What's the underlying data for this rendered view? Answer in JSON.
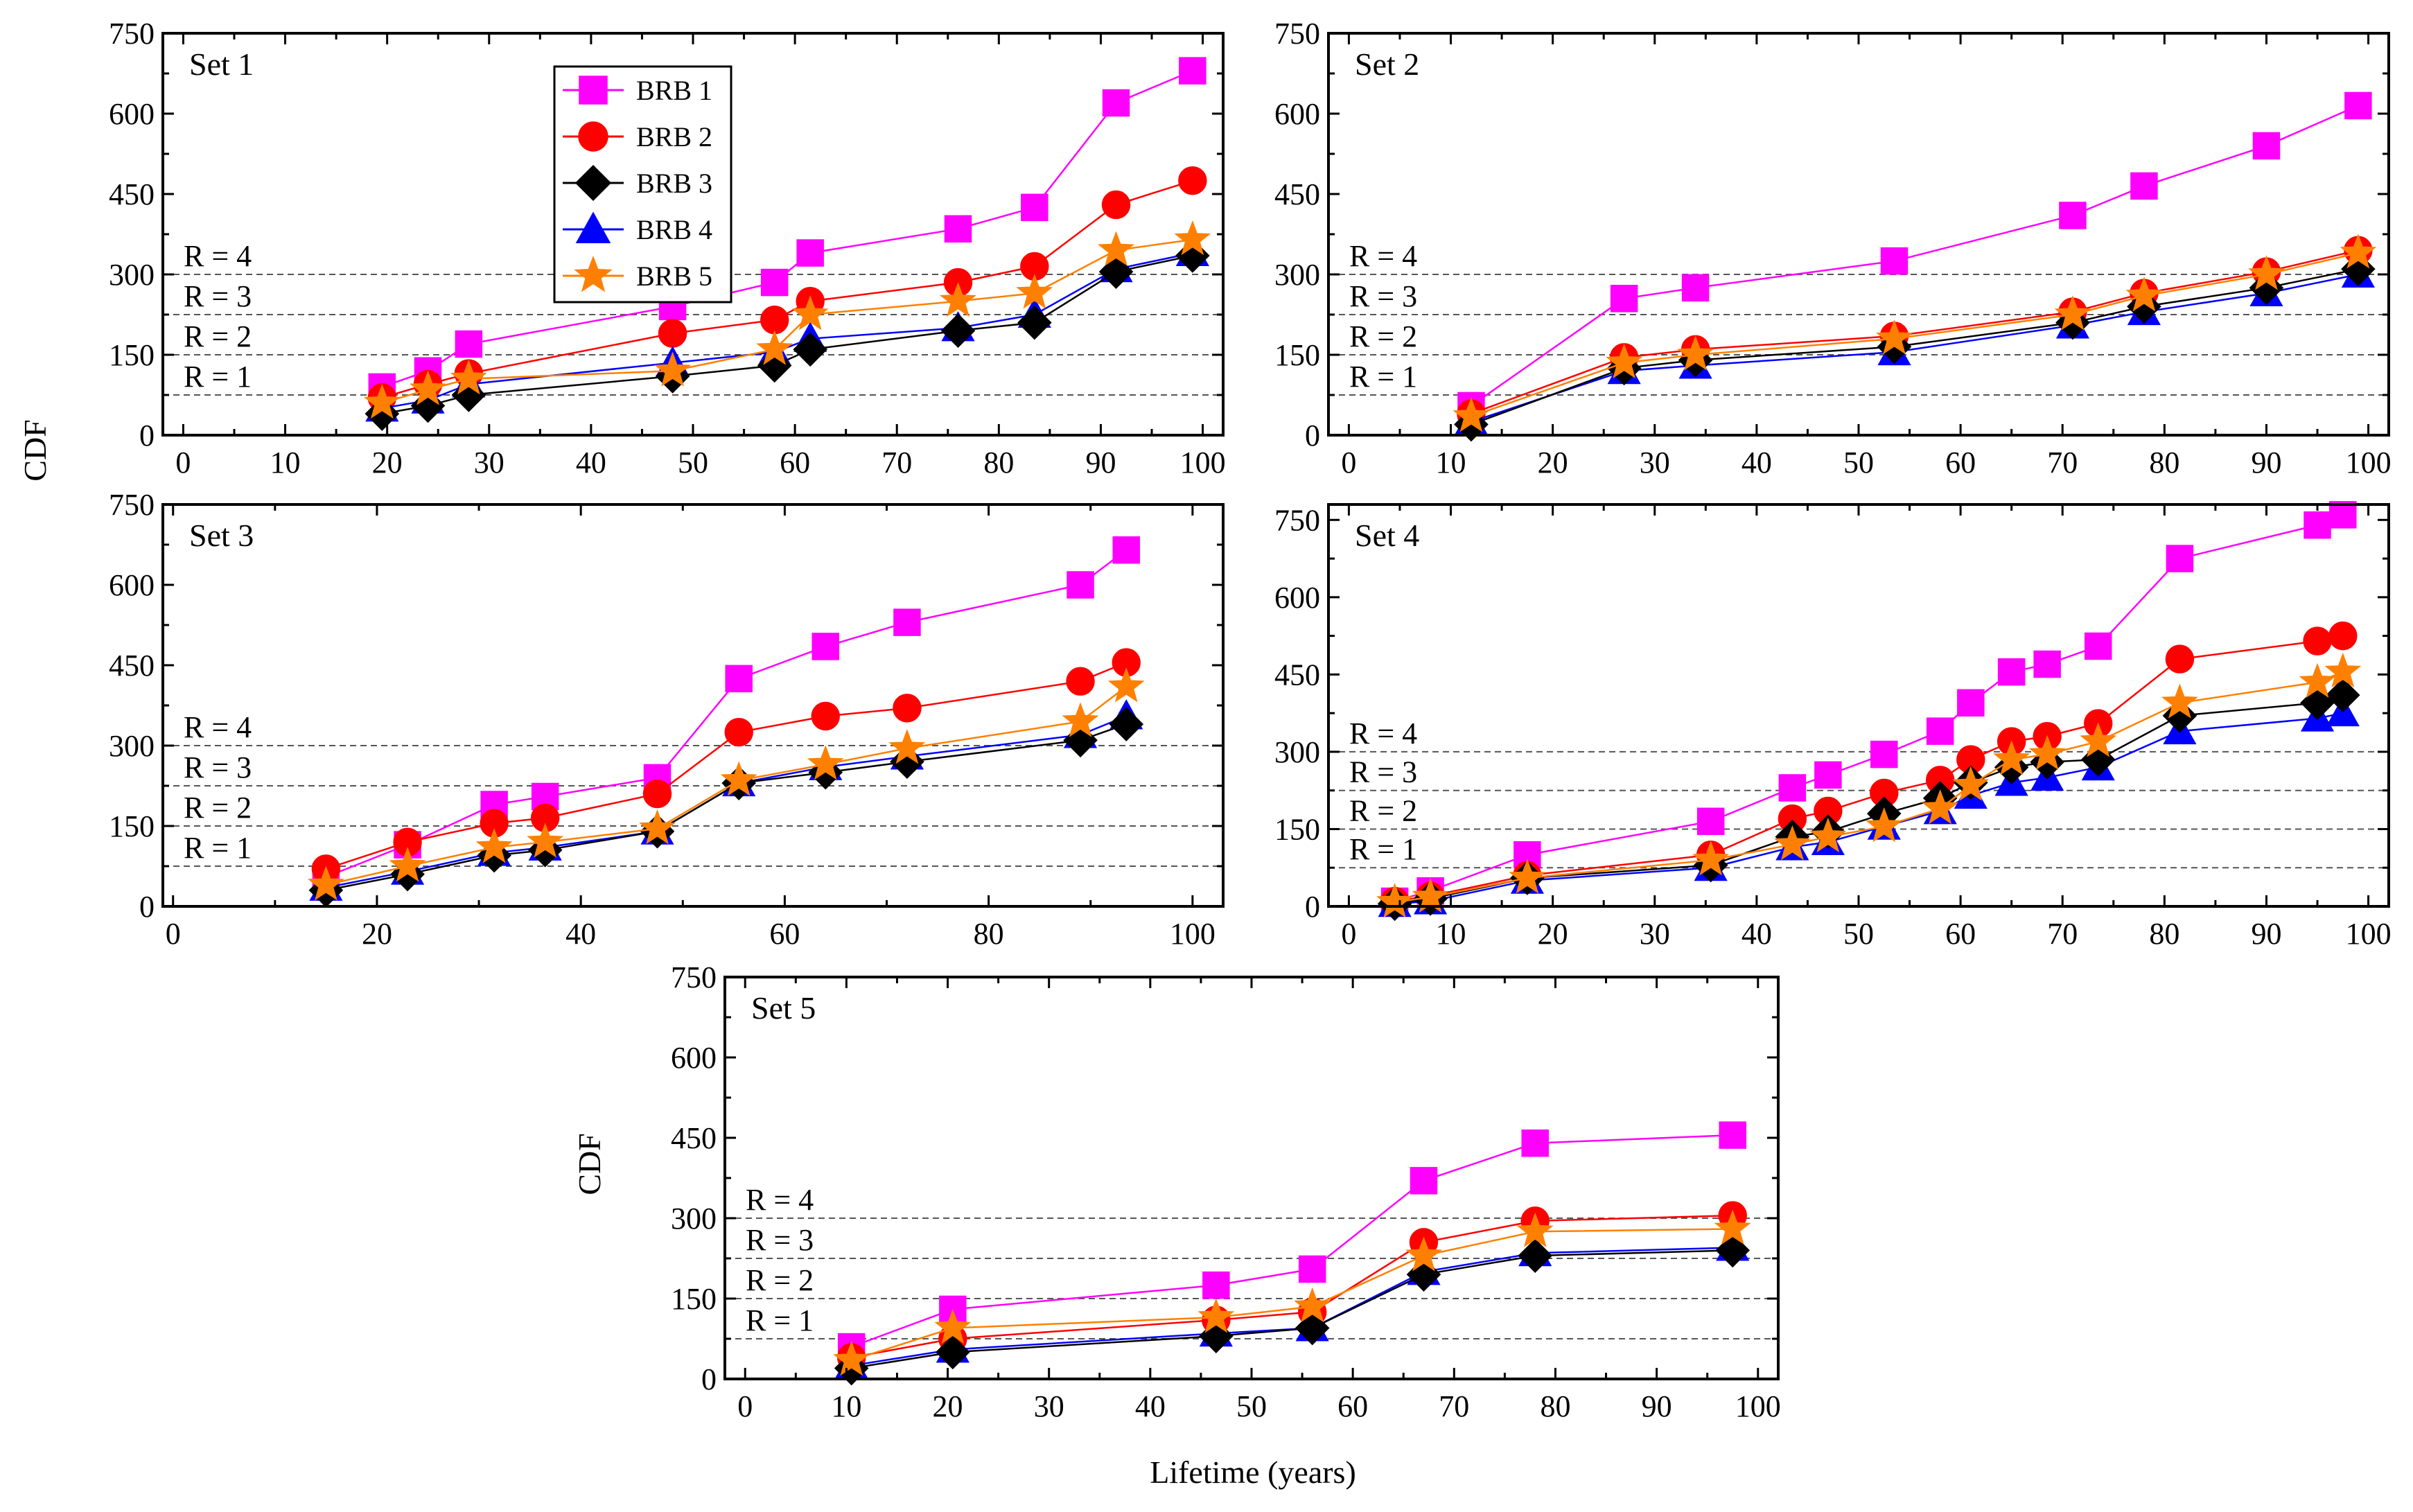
{
  "figure": {
    "ylabel": "CDF",
    "xlabel": "Lifetime (years)"
  },
  "legend": [
    {
      "label": "BRB 1",
      "color": "#ff00ff",
      "marker": "square"
    },
    {
      "label": "BRB 2",
      "color": "#ff0000",
      "marker": "circle"
    },
    {
      "label": "BRB 3",
      "color": "#000000",
      "marker": "diamond"
    },
    {
      "label": "BRB 4",
      "color": "#0000ff",
      "marker": "triangle"
    },
    {
      "label": "BRB 5",
      "color": "#ff8000",
      "marker": "star"
    }
  ],
  "chart_data": [
    {
      "type": "line",
      "title": "Set 1",
      "xlim": [
        -2,
        102
      ],
      "xticks": [
        0,
        10,
        20,
        30,
        40,
        50,
        60,
        70,
        80,
        90,
        100
      ],
      "ylim": [
        0,
        750
      ],
      "yticks": [
        0,
        150,
        300,
        450,
        600,
        750
      ],
      "thresholds": [
        {
          "label": "R = 1",
          "y": 75
        },
        {
          "label": "R = 2",
          "y": 150
        },
        {
          "label": "R = 3",
          "y": 225
        },
        {
          "label": "R = 4",
          "y": 300
        }
      ],
      "x": [
        19.5,
        24,
        28,
        48,
        58,
        61.5,
        76,
        83.5,
        91.5,
        99
      ],
      "series": [
        {
          "name": "BRB 1",
          "values": [
            90,
            120,
            170,
            240,
            285,
            340,
            385,
            425,
            620,
            680
          ]
        },
        {
          "name": "BRB 2",
          "values": [
            70,
            95,
            115,
            190,
            215,
            250,
            285,
            315,
            430,
            475
          ]
        },
        {
          "name": "BRB 3",
          "values": [
            40,
            55,
            75,
            110,
            130,
            160,
            195,
            210,
            305,
            335
          ]
        },
        {
          "name": "BRB 4",
          "values": [
            50,
            65,
            95,
            135,
            155,
            180,
            200,
            225,
            310,
            340
          ]
        },
        {
          "name": "BRB 5",
          "values": [
            60,
            85,
            105,
            120,
            160,
            225,
            250,
            265,
            345,
            365
          ]
        }
      ]
    },
    {
      "type": "line",
      "title": "Set 2",
      "xlim": [
        -2,
        102
      ],
      "xticks": [
        0,
        10,
        20,
        30,
        40,
        50,
        60,
        70,
        80,
        90,
        100
      ],
      "ylim": [
        0,
        750
      ],
      "yticks": [
        0,
        150,
        300,
        450,
        600,
        750
      ],
      "thresholds": [
        {
          "label": "R = 1",
          "y": 75
        },
        {
          "label": "R = 2",
          "y": 150
        },
        {
          "label": "R = 3",
          "y": 225
        },
        {
          "label": "R = 4",
          "y": 300
        }
      ],
      "x": [
        12,
        27,
        34,
        53.5,
        71,
        78,
        90,
        99
      ],
      "series": [
        {
          "name": "BRB 1",
          "values": [
            55,
            255,
            275,
            325,
            410,
            465,
            540,
            615
          ]
        },
        {
          "name": "BRB 2",
          "values": [
            40,
            145,
            160,
            185,
            230,
            265,
            305,
            345
          ]
        },
        {
          "name": "BRB 3",
          "values": [
            20,
            125,
            140,
            165,
            210,
            240,
            275,
            310
          ]
        },
        {
          "name": "BRB 4",
          "values": [
            25,
            120,
            130,
            155,
            205,
            230,
            265,
            300
          ]
        },
        {
          "name": "BRB 5",
          "values": [
            35,
            135,
            150,
            180,
            225,
            260,
            300,
            340
          ]
        }
      ]
    },
    {
      "type": "line",
      "title": "Set 3",
      "xlim": [
        -1,
        103
      ],
      "xticks": [
        0,
        20,
        40,
        60,
        80,
        100
      ],
      "ylim": [
        0,
        750
      ],
      "yticks": [
        0,
        150,
        300,
        450,
        600,
        750
      ],
      "thresholds": [
        {
          "label": "R = 1",
          "y": 75
        },
        {
          "label": "R = 2",
          "y": 150
        },
        {
          "label": "R = 3",
          "y": 225
        },
        {
          "label": "R = 4",
          "y": 300
        }
      ],
      "x": [
        15,
        23,
        31.5,
        36.5,
        47.5,
        55.5,
        64,
        72,
        89,
        93.5
      ],
      "series": [
        {
          "name": "BRB 1",
          "values": [
            55,
            115,
            190,
            205,
            240,
            425,
            485,
            530,
            600,
            665
          ]
        },
        {
          "name": "BRB 2",
          "values": [
            70,
            120,
            155,
            165,
            210,
            325,
            355,
            370,
            420,
            455
          ]
        },
        {
          "name": "BRB 3",
          "values": [
            30,
            60,
            95,
            105,
            140,
            230,
            250,
            270,
            310,
            340
          ]
        },
        {
          "name": "BRB 4",
          "values": [
            35,
            65,
            100,
            110,
            140,
            230,
            260,
            280,
            320,
            355
          ]
        },
        {
          "name": "BRB 5",
          "values": [
            40,
            75,
            110,
            120,
            145,
            235,
            265,
            295,
            345,
            410
          ]
        }
      ]
    },
    {
      "type": "line",
      "title": "Set 4",
      "xlim": [
        -2,
        102
      ],
      "xticks": [
        0,
        10,
        20,
        30,
        40,
        50,
        60,
        70,
        80,
        90,
        100
      ],
      "ylim": [
        0,
        780
      ],
      "yticks": [
        0,
        150,
        300,
        450,
        600,
        750
      ],
      "thresholds": [
        {
          "label": "R = 1",
          "y": 75
        },
        {
          "label": "R = 2",
          "y": 150
        },
        {
          "label": "R = 3",
          "y": 225
        },
        {
          "label": "R = 4",
          "y": 300
        }
      ],
      "x": [
        4.5,
        8,
        17.5,
        35.5,
        43.5,
        47,
        52.5,
        58,
        61,
        65,
        68.5,
        73.5,
        81.5,
        95,
        97.5
      ],
      "series": [
        {
          "name": "BRB 1",
          "values": [
            10,
            30,
            100,
            165,
            230,
            255,
            295,
            340,
            395,
            455,
            470,
            505,
            675,
            740,
            760
          ]
        },
        {
          "name": "BRB 2",
          "values": [
            10,
            20,
            60,
            100,
            170,
            185,
            220,
            245,
            285,
            320,
            330,
            355,
            480,
            515,
            525
          ]
        },
        {
          "name": "BRB 3",
          "values": [
            5,
            15,
            55,
            80,
            135,
            145,
            180,
            210,
            240,
            270,
            280,
            285,
            370,
            395,
            410
          ]
        },
        {
          "name": "BRB 4",
          "values": [
            5,
            10,
            50,
            75,
            115,
            125,
            155,
            185,
            215,
            240,
            250,
            270,
            340,
            365,
            375
          ]
        },
        {
          "name": "BRB 5",
          "values": [
            8,
            18,
            55,
            90,
            120,
            135,
            155,
            190,
            235,
            285,
            295,
            320,
            395,
            435,
            455
          ]
        }
      ]
    },
    {
      "type": "line",
      "title": "Set 5",
      "xlim": [
        -2,
        102
      ],
      "xticks": [
        0,
        10,
        20,
        30,
        40,
        50,
        60,
        70,
        80,
        90,
        100
      ],
      "ylim": [
        0,
        750
      ],
      "yticks": [
        0,
        150,
        300,
        450,
        600,
        750
      ],
      "thresholds": [
        {
          "label": "R = 1",
          "y": 75
        },
        {
          "label": "R = 2",
          "y": 150
        },
        {
          "label": "R = 3",
          "y": 225
        },
        {
          "label": "R = 4",
          "y": 300
        }
      ],
      "x": [
        10.5,
        20.5,
        46.5,
        56,
        67,
        78,
        97.5
      ],
      "series": [
        {
          "name": "BRB 1",
          "values": [
            60,
            130,
            175,
            205,
            370,
            440,
            455
          ]
        },
        {
          "name": "BRB 2",
          "values": [
            40,
            75,
            110,
            125,
            255,
            295,
            305
          ]
        },
        {
          "name": "BRB 3",
          "values": [
            20,
            50,
            80,
            95,
            195,
            230,
            240
          ]
        },
        {
          "name": "BRB 4",
          "values": [
            25,
            55,
            85,
            95,
            200,
            235,
            245
          ]
        },
        {
          "name": "BRB 5",
          "values": [
            35,
            95,
            115,
            135,
            230,
            275,
            280
          ]
        }
      ]
    }
  ]
}
